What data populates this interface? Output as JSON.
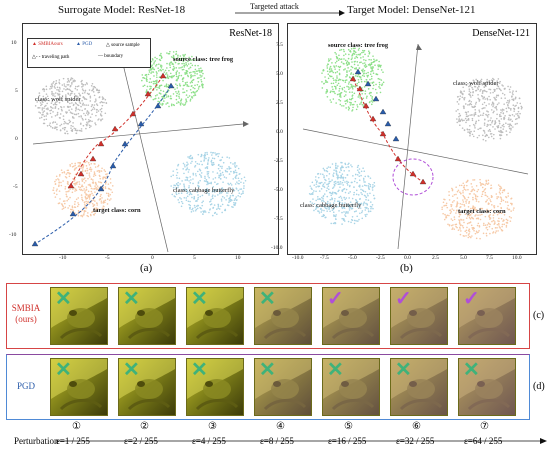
{
  "header": {
    "surrogate": "Surrogate Model: ResNet-18",
    "attack": "Targeted attack",
    "target": "Target Model: DenseNet-121"
  },
  "left_panel": {
    "title": "ResNet-18",
    "caption": "(a)",
    "legend": {
      "smia": "SMBIAours",
      "pgd": "PGD",
      "source_sample": "source sample",
      "path": "traveling path",
      "boundary": "boundary"
    },
    "classes": {
      "frog": "source class: tree frog",
      "spider": "class: wolf spider",
      "butterfly": "class: cabbage butterfly",
      "corn": "target class: corn"
    },
    "xticks": [
      "-10",
      "-5",
      "0",
      "5",
      "10"
    ],
    "yticks": [
      "10",
      "5",
      "0",
      "-5",
      "-10"
    ]
  },
  "right_panel": {
    "title": "DenseNet-121",
    "caption": "(b)",
    "classes": {
      "frog": "source class: tree frog",
      "spider": "class: wolf spider",
      "butterfly": "class: cabbage butterfly",
      "corn": "target class: corn"
    },
    "xticks": [
      "-10.0",
      "-7.5",
      "-5.0",
      "-2.5",
      "0.0",
      "2.5",
      "5.0",
      "7.5",
      "10.0"
    ],
    "yticks": [
      "7.5",
      "5.0",
      "2.5",
      "0.0",
      "-2.5",
      "-5.0",
      "-7.5",
      "-10.0"
    ]
  },
  "rows": {
    "smia_label_line1": "SMBIA",
    "smia_label_line2": "(ours)",
    "pgd_label": "PGD",
    "smia_tag": "(c)",
    "pgd_tag": "(d)",
    "smia_marks": [
      "cross",
      "cross",
      "cross",
      "cross",
      "check",
      "check",
      "check"
    ],
    "pgd_marks": [
      "cross",
      "cross",
      "cross",
      "cross",
      "cross",
      "cross",
      "cross"
    ]
  },
  "perturbation": {
    "label": "Perturbation",
    "indices": [
      "①",
      "②",
      "③",
      "④",
      "⑤",
      "⑥",
      "⑦"
    ],
    "values": [
      "ε=1 / 255",
      "ε=2 / 255",
      "ε=4 / 255",
      "ε=8 / 255",
      "ε=16 / 255",
      "ε=32 / 255",
      "ε=64 / 255"
    ]
  },
  "colors": {
    "frog": "#8ee08a",
    "spider": "#bdbdbd",
    "butterfly": "#a8d4e6",
    "corn": "#f6c9a6",
    "smia": "#d0302b",
    "pgd": "#2a5caa",
    "smia_box": "#d64545",
    "pgd_box_top": "#8a4aa0",
    "pgd_box_bottom": "#4f8ad6",
    "check": "#b04fd8",
    "cross": "#3fb27a"
  }
}
